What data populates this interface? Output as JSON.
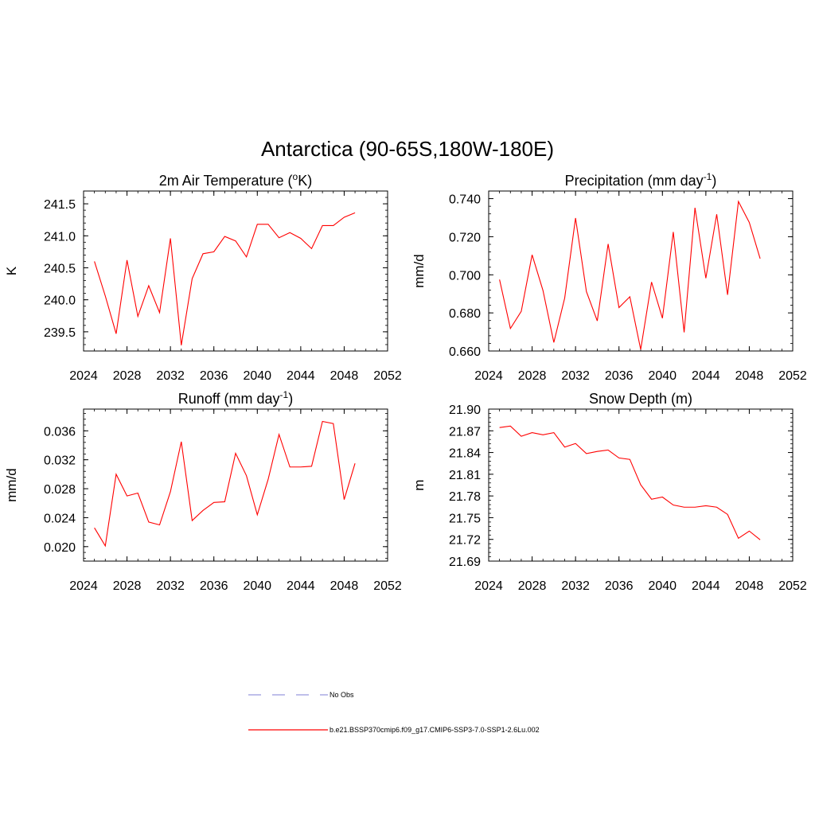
{
  "title": "Antarctica (90-65S,180W-180E)",
  "legend": {
    "entries": [
      {
        "label": "No Obs",
        "color": "#9999dd",
        "style": "dashed"
      },
      {
        "label": "b.e21.BSSP370cmip6.f09_g17.CMIP6-SSP3-7.0-SSP1-2.6Lu.002",
        "color": "#ff0000",
        "style": "solid"
      }
    ]
  },
  "chart_data": [
    {
      "type": "line",
      "title": "2m Air Temperature (",
      "title_sup_pre": "o",
      "title_tail": "K)",
      "title_sup_post": "",
      "title_end": "",
      "ylabel": "K",
      "xlim": [
        2024,
        2052
      ],
      "ylim": [
        239.2,
        241.7
      ],
      "xticks": [
        "2024",
        "2028",
        "2032",
        "2036",
        "2040",
        "2044",
        "2048",
        "2052"
      ],
      "yticks": [
        "239.5",
        "240.0",
        "240.5",
        "241.0",
        "241.5"
      ],
      "series": [
        {
          "color": "#ff0000",
          "x": [
            2025,
            2026,
            2027,
            2028,
            2029,
            2030,
            2031,
            2032,
            2033,
            2034,
            2035,
            2036,
            2037,
            2038,
            2039,
            2040,
            2041,
            2042,
            2043,
            2044,
            2045,
            2046,
            2047,
            2048,
            2049
          ],
          "y": [
            240.6,
            240.06,
            239.47,
            240.62,
            239.74,
            240.22,
            239.8,
            240.96,
            239.29,
            240.33,
            240.72,
            240.75,
            240.99,
            240.92,
            240.67,
            241.18,
            241.18,
            240.97,
            241.05,
            240.96,
            240.8,
            241.16,
            241.16,
            241.29,
            241.36
          ]
        }
      ]
    },
    {
      "type": "line",
      "title": "Precipitation (mm day",
      "title_sup_pre": "",
      "title_tail": "",
      "title_sup_post": "-1",
      "title_end": ")",
      "ylabel": "mm/d",
      "xlim": [
        2024,
        2052
      ],
      "ylim": [
        0.66,
        0.744
      ],
      "xticks": [
        "2024",
        "2028",
        "2032",
        "2036",
        "2040",
        "2044",
        "2048",
        "2052"
      ],
      "yticks": [
        "0.660",
        "0.680",
        "0.700",
        "0.720",
        "0.740"
      ],
      "series": [
        {
          "color": "#ff0000",
          "x": [
            2025,
            2026,
            2027,
            2028,
            2029,
            2030,
            2031,
            2032,
            2033,
            2034,
            2035,
            2036,
            2037,
            2038,
            2039,
            2040,
            2041,
            2042,
            2043,
            2044,
            2045,
            2046,
            2047,
            2048,
            2049
          ],
          "y": [
            0.6975,
            0.6718,
            0.6808,
            0.7105,
            0.6918,
            0.6645,
            0.6878,
            0.7298,
            0.6912,
            0.6758,
            0.7162,
            0.6828,
            0.6885,
            0.6608,
            0.6962,
            0.6772,
            0.7225,
            0.6698,
            0.7352,
            0.6982,
            0.7318,
            0.6895,
            0.7385,
            0.7275,
            0.7085
          ]
        }
      ]
    },
    {
      "type": "line",
      "title": "Runoff (mm day",
      "title_sup_pre": "",
      "title_tail": "",
      "title_sup_post": "-1",
      "title_end": ")",
      "ylabel": "mm/d",
      "xlim": [
        2024,
        2052
      ],
      "ylim": [
        0.018,
        0.039
      ],
      "xticks": [
        "2024",
        "2028",
        "2032",
        "2036",
        "2040",
        "2044",
        "2048",
        "2052"
      ],
      "yticks": [
        "0.020",
        "0.024",
        "0.028",
        "0.032",
        "0.036"
      ],
      "series": [
        {
          "color": "#ff0000",
          "x": [
            2025,
            2026,
            2027,
            2028,
            2029,
            2030,
            2031,
            2032,
            2033,
            2034,
            2035,
            2036,
            2037,
            2038,
            2039,
            2040,
            2041,
            2042,
            2043,
            2044,
            2045,
            2046,
            2047,
            2048,
            2049
          ],
          "y": [
            0.0226,
            0.0201,
            0.03,
            0.027,
            0.0274,
            0.0234,
            0.023,
            0.0276,
            0.0345,
            0.0236,
            0.025,
            0.0261,
            0.0262,
            0.0329,
            0.0298,
            0.0244,
            0.0293,
            0.0355,
            0.031,
            0.031,
            0.0311,
            0.0373,
            0.037,
            0.0265,
            0.0315
          ]
        }
      ]
    },
    {
      "type": "line",
      "title": "Snow Depth (m)",
      "title_sup_pre": "",
      "title_tail": "",
      "title_sup_post": "",
      "title_end": "",
      "ylabel": "m",
      "xlim": [
        2024,
        2052
      ],
      "ylim": [
        21.69,
        21.9
      ],
      "xticks": [
        "2024",
        "2028",
        "2032",
        "2036",
        "2040",
        "2044",
        "2048",
        "2052"
      ],
      "yticks": [
        "21.69",
        "21.72",
        "21.75",
        "21.78",
        "21.81",
        "21.84",
        "21.87",
        "21.90"
      ],
      "series": [
        {
          "color": "#ff0000",
          "x": [
            2025,
            2026,
            2027,
            2028,
            2029,
            2030,
            2031,
            2032,
            2033,
            2034,
            2035,
            2036,
            2037,
            2038,
            2039,
            2040,
            2041,
            2042,
            2043,
            2044,
            2045,
            2046,
            2047,
            2048,
            2049
          ],
          "y": [
            21.8745,
            21.8765,
            21.8625,
            21.8675,
            21.8645,
            21.8675,
            21.8475,
            21.8525,
            21.8385,
            21.8415,
            21.8435,
            21.8325,
            21.8305,
            21.7955,
            21.7755,
            21.7785,
            21.7675,
            21.7645,
            21.7645,
            21.7665,
            21.7645,
            21.7545,
            21.7215,
            21.7315,
            21.7195
          ]
        }
      ]
    }
  ]
}
